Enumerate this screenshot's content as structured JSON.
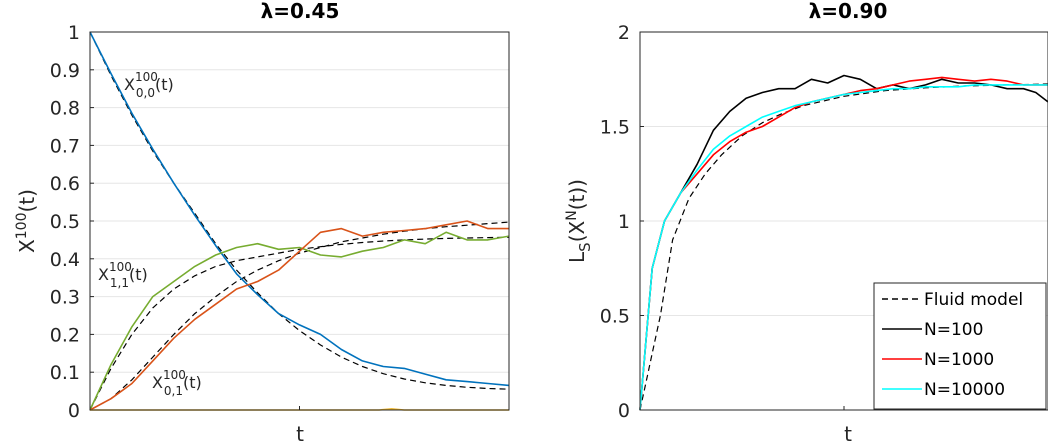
{
  "colors": {
    "blue": "#0072BD",
    "orange": "#D95319",
    "green": "#77AC30",
    "yellow": "#EDB120",
    "black": "#000000",
    "red": "#FF0000",
    "cyan": "#00FFFF"
  },
  "chart_data": [
    {
      "type": "line",
      "title": "λ=0.45",
      "xlabel": "t",
      "ylabel": "X100(t)",
      "ylim": [
        0,
        1
      ],
      "yticks": [
        "0",
        "0.1",
        "0.2",
        "0.3",
        "0.4",
        "0.5",
        "0.6",
        "0.7",
        "0.8",
        "0.9",
        "1"
      ],
      "xticks": [],
      "grid": true,
      "annotations": [
        {
          "base": "X",
          "sup": "100",
          "sub": "0,0",
          "tail": "(t)"
        },
        {
          "base": "X",
          "sup": "100",
          "sub": "1,1",
          "tail": "(t)"
        },
        {
          "base": "X",
          "sup": "100",
          "sub": "0,1",
          "tail": "(t)"
        }
      ],
      "series": [
        {
          "kind": "dashed",
          "color": "#000000",
          "x": [
            0,
            0.05,
            0.1,
            0.15,
            0.2,
            0.25,
            0.3,
            0.35,
            0.4,
            0.45,
            0.5,
            0.55,
            0.6,
            0.65,
            0.7,
            0.75,
            0.8,
            0.85,
            0.9,
            0.95,
            1.0
          ],
          "values": [
            1.0,
            0.885,
            0.78,
            0.685,
            0.6,
            0.52,
            0.44,
            0.37,
            0.31,
            0.255,
            0.21,
            0.172,
            0.14,
            0.115,
            0.096,
            0.082,
            0.072,
            0.065,
            0.06,
            0.057,
            0.055
          ]
        },
        {
          "kind": "dashed",
          "color": "#000000",
          "x": [
            0,
            0.05,
            0.1,
            0.15,
            0.2,
            0.25,
            0.3,
            0.35,
            0.4,
            0.45,
            0.5,
            0.55,
            0.6,
            0.65,
            0.7,
            0.75,
            0.8,
            0.85,
            0.9,
            0.95,
            1.0
          ],
          "values": [
            0,
            0.11,
            0.2,
            0.27,
            0.32,
            0.355,
            0.38,
            0.395,
            0.405,
            0.415,
            0.425,
            0.432,
            0.438,
            0.443,
            0.447,
            0.45,
            0.452,
            0.454,
            0.455,
            0.456,
            0.457
          ]
        },
        {
          "kind": "dashed",
          "color": "#000000",
          "x": [
            0,
            0.05,
            0.1,
            0.15,
            0.2,
            0.25,
            0.3,
            0.35,
            0.4,
            0.45,
            0.5,
            0.55,
            0.6,
            0.65,
            0.7,
            0.75,
            0.8,
            0.85,
            0.9,
            0.95,
            1.0
          ],
          "values": [
            0,
            0.03,
            0.08,
            0.14,
            0.2,
            0.255,
            0.3,
            0.34,
            0.37,
            0.395,
            0.415,
            0.43,
            0.445,
            0.455,
            0.465,
            0.473,
            0.48,
            0.485,
            0.489,
            0.493,
            0.497
          ]
        },
        {
          "kind": "solid",
          "color": "#0072BD",
          "x": [
            0,
            0.05,
            0.1,
            0.15,
            0.2,
            0.25,
            0.3,
            0.35,
            0.4,
            0.45,
            0.5,
            0.55,
            0.6,
            0.65,
            0.7,
            0.75,
            0.8,
            0.85,
            0.9,
            0.95,
            1.0
          ],
          "values": [
            1.0,
            0.89,
            0.785,
            0.69,
            0.6,
            0.515,
            0.435,
            0.36,
            0.305,
            0.255,
            0.225,
            0.2,
            0.16,
            0.13,
            0.115,
            0.11,
            0.095,
            0.08,
            0.075,
            0.07,
            0.065
          ]
        },
        {
          "kind": "solid",
          "color": "#77AC30",
          "x": [
            0,
            0.05,
            0.1,
            0.15,
            0.2,
            0.25,
            0.3,
            0.35,
            0.4,
            0.45,
            0.5,
            0.55,
            0.6,
            0.65,
            0.7,
            0.75,
            0.8,
            0.85,
            0.9,
            0.95,
            1.0
          ],
          "values": [
            0,
            0.12,
            0.22,
            0.3,
            0.34,
            0.38,
            0.41,
            0.43,
            0.44,
            0.425,
            0.43,
            0.41,
            0.405,
            0.42,
            0.43,
            0.45,
            0.44,
            0.47,
            0.45,
            0.45,
            0.46
          ]
        },
        {
          "kind": "solid",
          "color": "#D95319",
          "x": [
            0,
            0.05,
            0.1,
            0.15,
            0.2,
            0.25,
            0.3,
            0.35,
            0.4,
            0.45,
            0.5,
            0.55,
            0.6,
            0.65,
            0.7,
            0.75,
            0.8,
            0.85,
            0.9,
            0.95,
            1.0
          ],
          "values": [
            0,
            0.03,
            0.07,
            0.13,
            0.19,
            0.24,
            0.28,
            0.32,
            0.34,
            0.37,
            0.42,
            0.47,
            0.48,
            0.46,
            0.47,
            0.475,
            0.48,
            0.49,
            0.5,
            0.48,
            0.48
          ]
        },
        {
          "kind": "solid",
          "color": "#EDB120",
          "x": [
            0,
            0.5,
            0.69,
            0.72,
            0.75,
            0.85,
            1.0
          ],
          "values": [
            0,
            0,
            0,
            0.003,
            0,
            0,
            0
          ]
        }
      ]
    },
    {
      "type": "line",
      "title": "λ=0.90",
      "xlabel": "t",
      "ylabel": "LS(XN(t))",
      "ylim": [
        0,
        2
      ],
      "yticks": [
        "0",
        "0.5",
        "1",
        "1.5",
        "2"
      ],
      "xticks": [],
      "grid": true,
      "legend": {
        "position": "bottom-right",
        "entries": [
          "Fluid model",
          "N=100",
          "N=1000",
          "N=10000"
        ]
      },
      "series": [
        {
          "name": "Fluid model",
          "kind": "dashed",
          "color": "#000000",
          "x": [
            0,
            0.01,
            0.02,
            0.03,
            0.05,
            0.08,
            0.12,
            0.16,
            0.2,
            0.25,
            0.3,
            0.35,
            0.4,
            0.5,
            0.6,
            0.7,
            0.8,
            0.9,
            1.0
          ],
          "values": [
            0,
            0.1,
            0.2,
            0.3,
            0.5,
            0.9,
            1.12,
            1.25,
            1.35,
            1.45,
            1.52,
            1.57,
            1.61,
            1.66,
            1.69,
            1.705,
            1.715,
            1.72,
            1.725
          ]
        },
        {
          "name": "N=100",
          "kind": "solid",
          "color": "#000000",
          "x": [
            0,
            0.03,
            0.06,
            0.1,
            0.14,
            0.18,
            0.22,
            0.26,
            0.3,
            0.34,
            0.38,
            0.42,
            0.46,
            0.5,
            0.54,
            0.58,
            0.62,
            0.66,
            0.7,
            0.74,
            0.78,
            0.82,
            0.86,
            0.9,
            0.94,
            0.97,
            1.0
          ],
          "values": [
            0,
            0.75,
            1.0,
            1.15,
            1.3,
            1.48,
            1.58,
            1.65,
            1.68,
            1.7,
            1.7,
            1.75,
            1.73,
            1.77,
            1.75,
            1.7,
            1.72,
            1.7,
            1.72,
            1.75,
            1.73,
            1.73,
            1.72,
            1.7,
            1.7,
            1.68,
            1.63
          ]
        },
        {
          "name": "N=1000",
          "kind": "solid",
          "color": "#FF0000",
          "x": [
            0,
            0.03,
            0.06,
            0.1,
            0.14,
            0.18,
            0.22,
            0.26,
            0.3,
            0.34,
            0.38,
            0.42,
            0.46,
            0.5,
            0.54,
            0.58,
            0.62,
            0.66,
            0.7,
            0.74,
            0.78,
            0.82,
            0.86,
            0.9,
            0.94,
            0.97,
            1.0
          ],
          "values": [
            0,
            0.75,
            1.0,
            1.15,
            1.25,
            1.35,
            1.42,
            1.47,
            1.5,
            1.55,
            1.6,
            1.63,
            1.65,
            1.67,
            1.69,
            1.7,
            1.72,
            1.74,
            1.75,
            1.76,
            1.75,
            1.74,
            1.75,
            1.74,
            1.72,
            1.72,
            1.72
          ]
        },
        {
          "name": "N=10000",
          "kind": "solid",
          "color": "#00FFFF",
          "x": [
            0,
            0.03,
            0.06,
            0.1,
            0.14,
            0.18,
            0.22,
            0.26,
            0.3,
            0.34,
            0.38,
            0.42,
            0.46,
            0.5,
            0.54,
            0.58,
            0.62,
            0.66,
            0.7,
            0.74,
            0.78,
            0.82,
            0.86,
            0.9,
            0.94,
            0.97,
            1.0
          ],
          "values": [
            0,
            0.75,
            1.0,
            1.15,
            1.27,
            1.38,
            1.45,
            1.5,
            1.55,
            1.58,
            1.61,
            1.63,
            1.65,
            1.67,
            1.68,
            1.69,
            1.7,
            1.7,
            1.71,
            1.71,
            1.71,
            1.72,
            1.72,
            1.72,
            1.72,
            1.72,
            1.72
          ]
        }
      ]
    }
  ]
}
